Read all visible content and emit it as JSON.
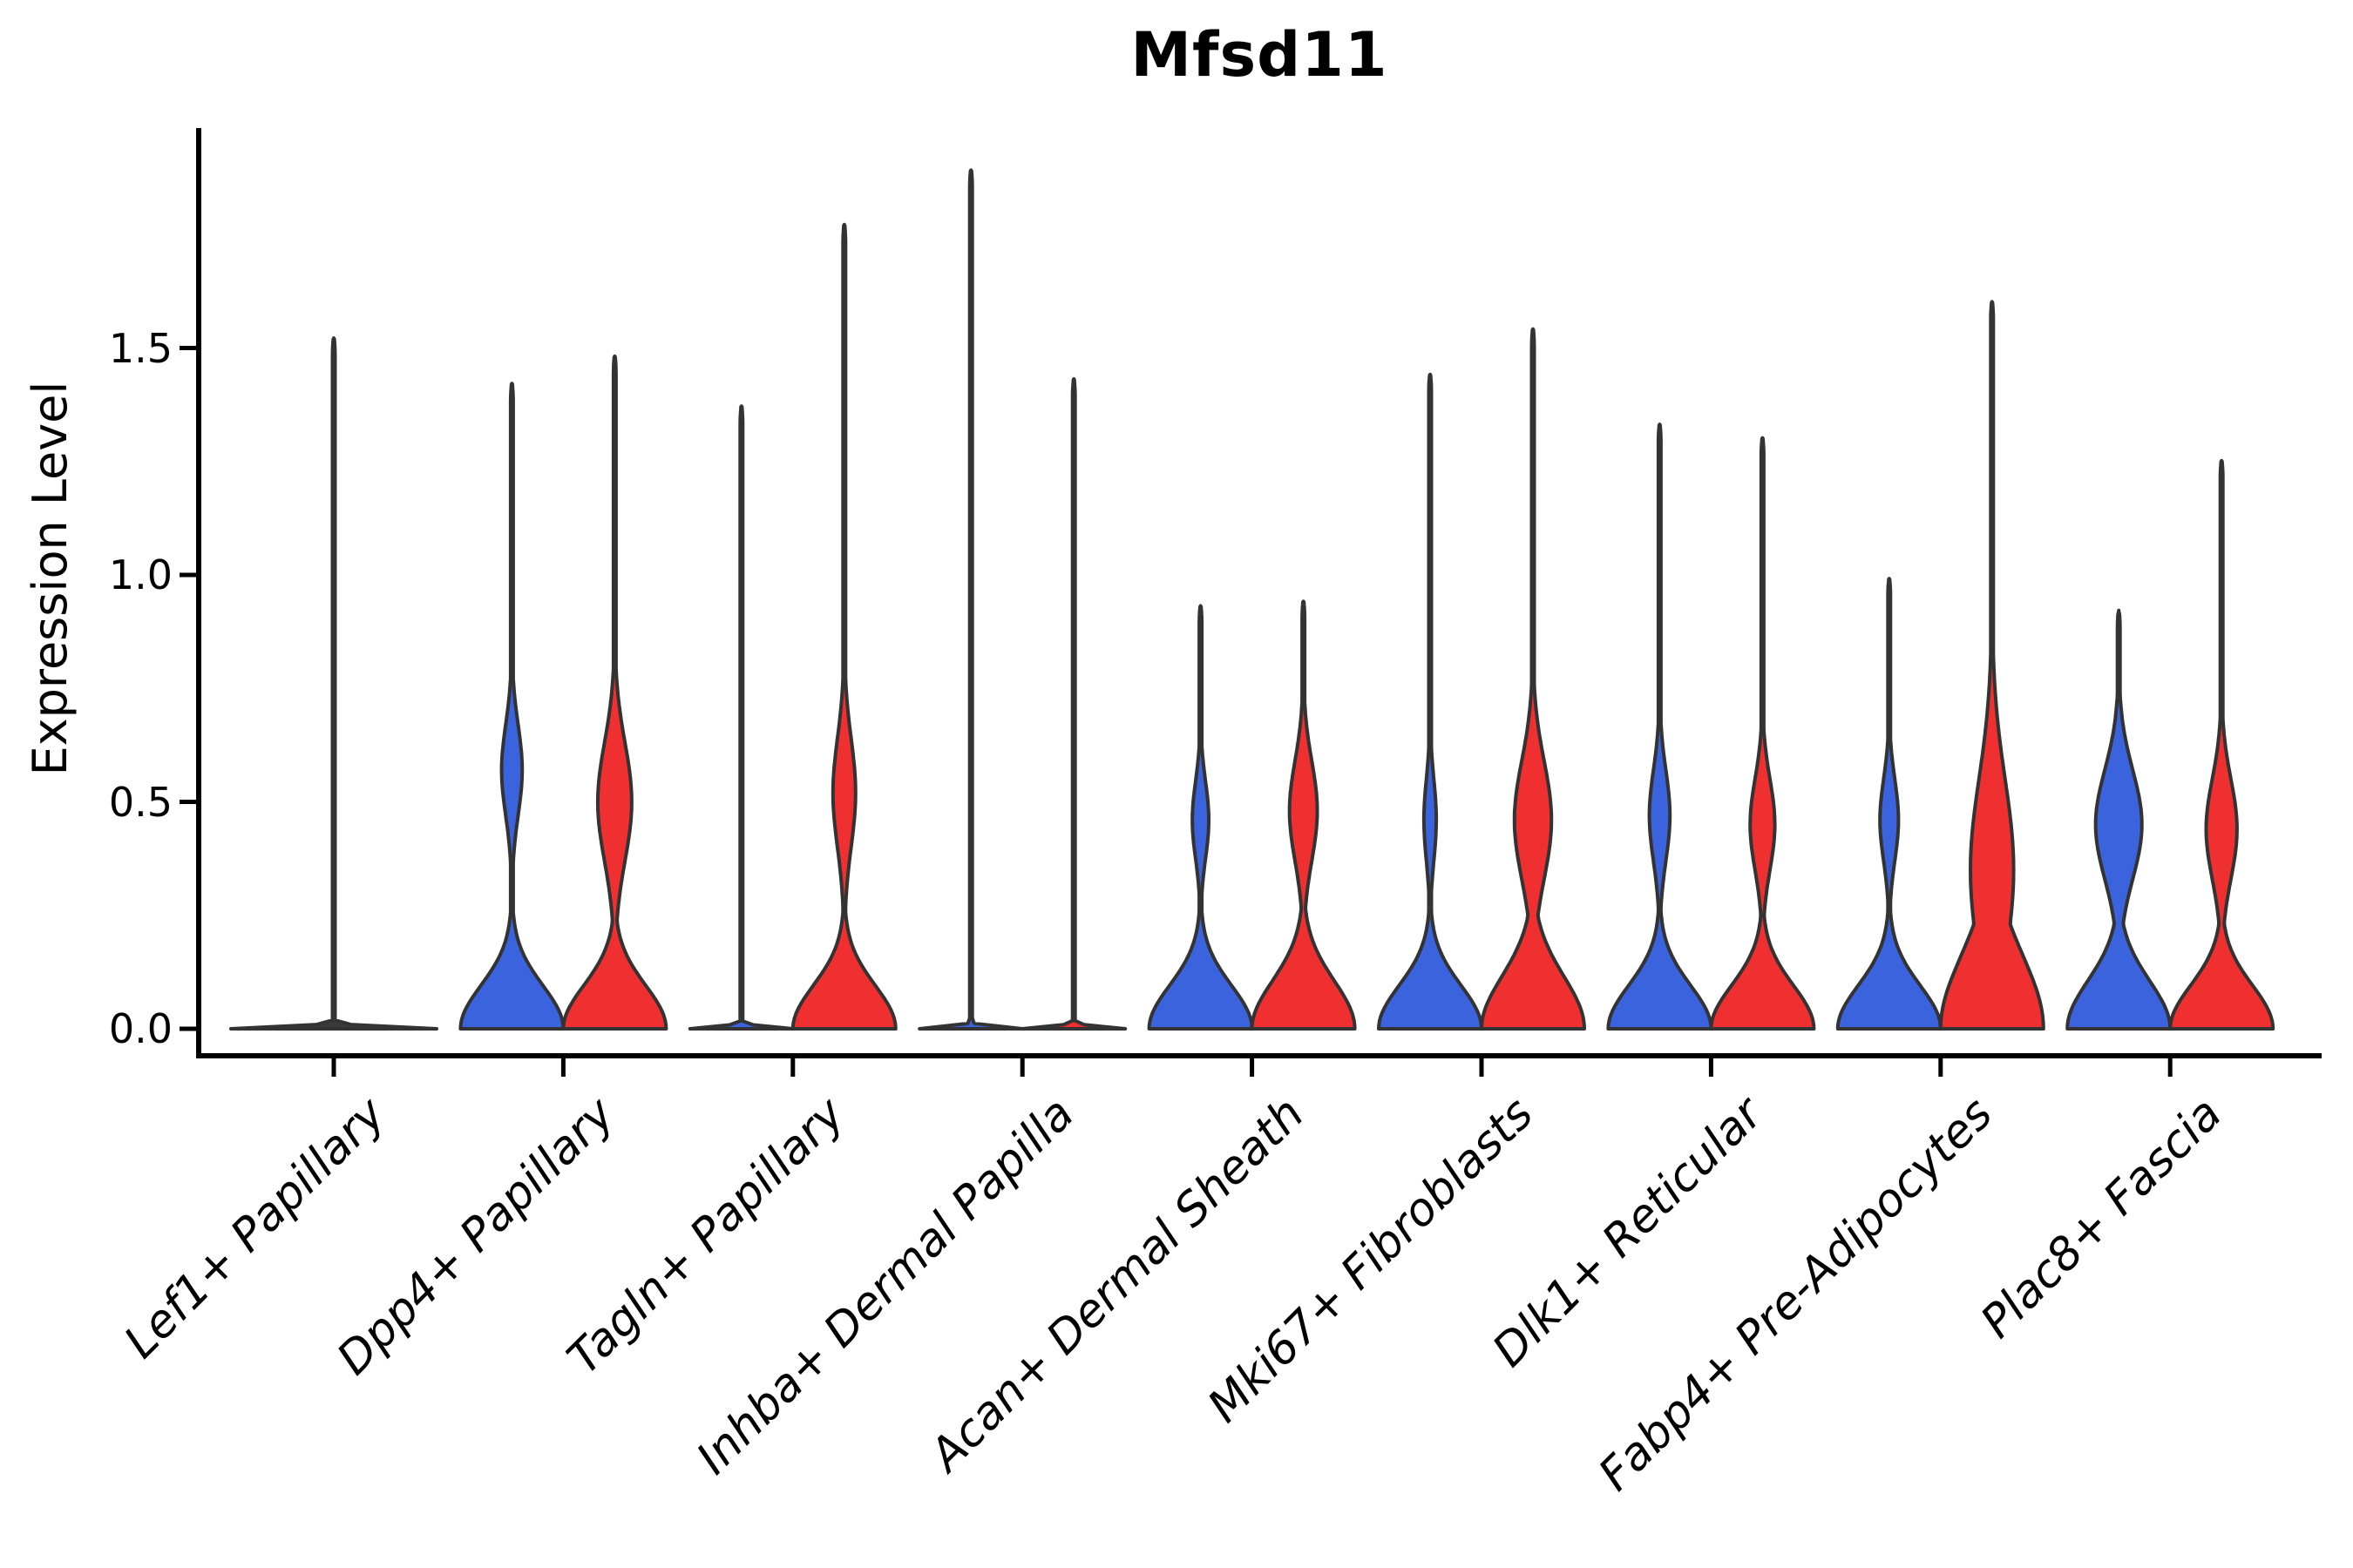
{
  "title": "Mfsd11",
  "y_axis": {
    "label": "Expression Level",
    "ticks": [
      {
        "value": 0.0,
        "label": "0.0"
      },
      {
        "value": 0.5,
        "label": "0.5"
      },
      {
        "value": 1.0,
        "label": "1.0"
      },
      {
        "value": 1.5,
        "label": "1.5"
      }
    ]
  },
  "x_axis": {
    "categories": [
      "Lef1+ Papillary",
      "Dpp4+ Papillary",
      "Tagln+ Papillary",
      "Inhba+ Dermal Papilla",
      "Acan+ Dermal Sheath",
      "Mki67+ Fibroblasts",
      "Dlk1+ Reticular",
      "Fabp4+ Pre-Adipocytes",
      "Plac8+ Fascia"
    ]
  },
  "colors": {
    "group_blue": "#3B63DD",
    "group_red": "#F03030",
    "flat_fill": "#3A3A3A",
    "outline": "#333333",
    "axis": "#000000",
    "text": "#000000"
  },
  "chart_data": {
    "type": "violin",
    "title": "Mfsd11",
    "ylabel": "Expression Level",
    "ylim": [
      -0.06,
      1.95
    ],
    "grid": false,
    "legend": "none",
    "categories": [
      "Lef1+ Papillary",
      "Dpp4+ Papillary",
      "Tagln+ Papillary",
      "Inhba+ Dermal Papilla",
      "Acan+ Dermal Sheath",
      "Mki67+ Fibroblasts",
      "Dlk1+ Reticular",
      "Fabp4+ Pre-Adipocytes",
      "Plac8+ Fascia"
    ],
    "groups": [
      "blue",
      "red"
    ],
    "violins": [
      {
        "category": "Lef1+ Papillary",
        "group": "single",
        "offset": 0,
        "halfwidth": 118,
        "flat": true,
        "max": 1.52
      },
      {
        "category": "Dpp4+ Papillary",
        "group": "blue",
        "offset": -1,
        "flat": false,
        "max": 1.42,
        "bulge": {
          "center": 0.57,
          "sigma": 0.1,
          "peak": 0.2
        }
      },
      {
        "category": "Dpp4+ Papillary",
        "group": "red",
        "offset": 1,
        "flat": false,
        "max": 1.48,
        "bulge": {
          "center": 0.5,
          "sigma": 0.13,
          "peak": 0.33
        }
      },
      {
        "category": "Tagln+ Papillary",
        "group": "blue",
        "offset": -1,
        "flat": true,
        "max": 1.37
      },
      {
        "category": "Tagln+ Papillary",
        "group": "red",
        "offset": 1,
        "flat": false,
        "max": 1.77,
        "bulge": {
          "center": 0.52,
          "sigma": 0.12,
          "peak": 0.22
        }
      },
      {
        "category": "Inhba+ Dermal Papilla",
        "group": "blue",
        "offset": -1,
        "flat": true,
        "max": 1.89
      },
      {
        "category": "Inhba+ Dermal Papilla",
        "group": "red",
        "offset": 1,
        "flat": true,
        "max": 1.43
      },
      {
        "category": "Acan+ Dermal Sheath",
        "group": "blue",
        "offset": -1,
        "flat": false,
        "max": 0.93,
        "bulge": {
          "center": 0.46,
          "sigma": 0.085,
          "peak": 0.16
        }
      },
      {
        "category": "Acan+ Dermal Sheath",
        "group": "red",
        "offset": 1,
        "flat": false,
        "max": 0.94,
        "base_sigma": 0.105,
        "bulge": {
          "center": 0.48,
          "sigma": 0.11,
          "peak": 0.27
        }
      },
      {
        "category": "Mki67+ Fibroblasts",
        "group": "blue",
        "offset": -1,
        "flat": false,
        "max": 1.44,
        "bulge": {
          "center": 0.46,
          "sigma": 0.09,
          "peak": 0.12
        }
      },
      {
        "category": "Mki67+ Fibroblasts",
        "group": "red",
        "offset": 1,
        "flat": false,
        "max": 1.54,
        "base_sigma": 0.115,
        "bulge": {
          "center": 0.46,
          "sigma": 0.13,
          "peak": 0.36
        }
      },
      {
        "category": "Dlk1+ Reticular",
        "group": "blue",
        "offset": -1,
        "flat": false,
        "max": 1.33,
        "bulge": {
          "center": 0.47,
          "sigma": 0.1,
          "peak": 0.2
        }
      },
      {
        "category": "Dlk1+ Reticular",
        "group": "red",
        "offset": 1,
        "flat": false,
        "max": 1.3,
        "bulge": {
          "center": 0.45,
          "sigma": 0.1,
          "peak": 0.24
        }
      },
      {
        "category": "Fabp4+ Pre-Adipocytes",
        "group": "blue",
        "offset": -1,
        "flat": false,
        "max": 0.99,
        "bulge": {
          "center": 0.46,
          "sigma": 0.09,
          "peak": 0.18
        }
      },
      {
        "category": "Fabp4+ Pre-Adipocytes",
        "group": "red",
        "offset": 1,
        "flat": false,
        "max": 1.6,
        "base_sigma": 0.16,
        "bulge": {
          "center": 0.35,
          "sigma": 0.2,
          "peak": 0.42
        }
      },
      {
        "category": "Plac8+ Fascia",
        "group": "blue",
        "offset": -1,
        "flat": false,
        "max": 0.92,
        "base_sigma": 0.105,
        "bulge": {
          "center": 0.45,
          "sigma": 0.12,
          "peak": 0.45
        }
      },
      {
        "category": "Plac8+ Fascia",
        "group": "red",
        "offset": 1,
        "flat": false,
        "max": 1.25,
        "bulge": {
          "center": 0.44,
          "sigma": 0.11,
          "peak": 0.3
        }
      }
    ]
  }
}
